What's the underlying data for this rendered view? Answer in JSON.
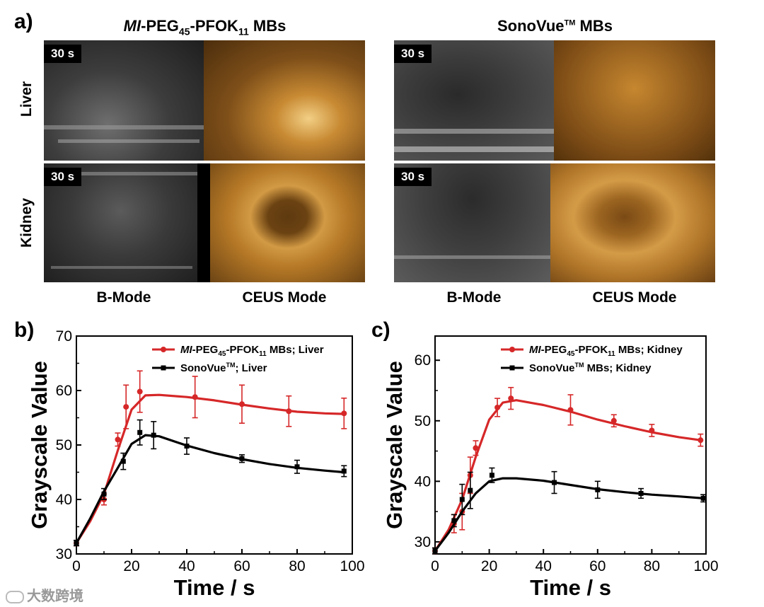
{
  "panel_a": {
    "label": "a)",
    "left_title_prefix": "MI",
    "left_title_mid": "-PEG",
    "left_title_sub1": "45",
    "left_title_mid2": "-PFOK",
    "left_title_sub2": "11",
    "left_title_suffix": " MBs",
    "right_title_main": "SonoVue",
    "right_title_tm": "TM",
    "right_title_suffix": " MBs",
    "rows": [
      "Liver",
      "Kidney"
    ],
    "time_badge": "30 s",
    "mode_b": "B-Mode",
    "mode_ceus": "CEUS Mode"
  },
  "watermark": "大数跨境",
  "chart_data": [
    {
      "type": "line",
      "panel": "b)",
      "xlabel": "Time / s",
      "ylabel": "Grayscale Value",
      "xlim": [
        0,
        100
      ],
      "ylim": [
        30,
        70
      ],
      "xticks": [
        "0",
        "20",
        "40",
        "60",
        "80",
        "100"
      ],
      "yticks": [
        "30",
        "40",
        "50",
        "60",
        "70"
      ],
      "legend_position": "top-right",
      "series": [
        {
          "name": "MI-PEG45-PFOK11 MBs; Liver",
          "legend_prefix": "MI",
          "legend_mid": "-PEG",
          "legend_sub1": "45",
          "legend_mid2": "-PFOK",
          "legend_sub2": "11",
          "legend_suffix": " MBs; Liver",
          "color": "#d62728",
          "marker": "circle",
          "x": [
            0,
            10,
            15,
            18,
            23,
            43,
            60,
            77,
            97
          ],
          "y": [
            32,
            40,
            51,
            57,
            59.8,
            58.8,
            57.5,
            56.2,
            55.8
          ],
          "err": [
            0.5,
            1,
            1.2,
            4,
            3.8,
            3.8,
            3.5,
            2.8,
            2.8
          ],
          "fit_x": [
            0,
            5,
            10,
            15,
            20,
            25,
            30,
            40,
            50,
            60,
            70,
            80,
            90,
            97
          ],
          "fit_y": [
            32,
            36,
            41,
            49,
            56.5,
            59.1,
            59.2,
            58.8,
            58.2,
            57.4,
            56.7,
            56.1,
            55.8,
            55.7
          ]
        },
        {
          "name": "SonoVue TM; Liver",
          "legend_prefix": "SonoVue",
          "legend_tm": "TM",
          "legend_suffix": "; Liver",
          "color": "#000000",
          "marker": "square",
          "x": [
            0,
            10,
            17,
            23,
            28,
            40,
            60,
            80,
            97
          ],
          "y": [
            32,
            41,
            47,
            52.3,
            51.8,
            49.8,
            47.5,
            46,
            45.2
          ],
          "err": [
            0.5,
            1,
            1.5,
            2.3,
            2.5,
            1.5,
            0.7,
            1.2,
            1
          ],
          "fit_x": [
            0,
            5,
            10,
            15,
            20,
            25,
            30,
            40,
            50,
            60,
            70,
            80,
            90,
            97
          ],
          "fit_y": [
            32,
            36.5,
            41.5,
            45.8,
            50.2,
            51.8,
            51.6,
            49.9,
            48.5,
            47.4,
            46.5,
            45.8,
            45.3,
            45.0
          ]
        }
      ]
    },
    {
      "type": "line",
      "panel": "c)",
      "xlabel": "Time / s",
      "ylabel": "Grayscale Value",
      "xlim": [
        0,
        100
      ],
      "ylim": [
        28,
        64
      ],
      "xticks": [
        "0",
        "20",
        "40",
        "60",
        "80",
        "100"
      ],
      "yticks": [
        "30",
        "40",
        "50",
        "60"
      ],
      "legend_position": "top-right",
      "series": [
        {
          "name": "MI-PEG45-PFOK11 MBs; Kidney",
          "legend_prefix": "MI",
          "legend_mid": "-PEG",
          "legend_sub1": "45",
          "legend_mid2": "-PFOK",
          "legend_sub2": "11",
          "legend_suffix": " MBs; Kidney",
          "color": "#d62728",
          "marker": "circle",
          "x": [
            0,
            7,
            10,
            13,
            15,
            23,
            28,
            50,
            66,
            80,
            98
          ],
          "y": [
            28.5,
            33,
            35,
            41,
            45.5,
            52.2,
            53.7,
            51.8,
            50,
            48.4,
            46.8
          ],
          "err": [
            0.5,
            1.5,
            3,
            3,
            1.2,
            1.5,
            1.8,
            2.5,
            1,
            1,
            1
          ],
          "fit_x": [
            0,
            5,
            10,
            15,
            20,
            25,
            30,
            40,
            50,
            60,
            70,
            80,
            90,
            98
          ],
          "fit_y": [
            28.5,
            32,
            37,
            44,
            50.2,
            53,
            53.4,
            52.6,
            51.5,
            50.2,
            49.1,
            48.1,
            47.3,
            46.8
          ]
        },
        {
          "name": "SonoVue TM MBs; Kidney",
          "legend_prefix": "SonoVue",
          "legend_tm": "TM",
          "legend_suffix": " MBs; Kidney",
          "color": "#000000",
          "marker": "square",
          "x": [
            0,
            7,
            10,
            13,
            21,
            44,
            60,
            76,
            99
          ],
          "y": [
            28.5,
            33.5,
            37,
            38.5,
            41,
            39.8,
            38.6,
            38,
            37.2
          ],
          "err": [
            0.5,
            1,
            2.5,
            3,
            1.2,
            1.8,
            1.4,
            0.8,
            0.6
          ],
          "fit_x": [
            0,
            5,
            10,
            15,
            20,
            25,
            30,
            40,
            50,
            60,
            70,
            80,
            90,
            99
          ],
          "fit_y": [
            28.5,
            31.5,
            35,
            38,
            40,
            40.5,
            40.5,
            40.1,
            39.4,
            38.7,
            38.2,
            37.8,
            37.5,
            37.2
          ]
        }
      ]
    }
  ]
}
